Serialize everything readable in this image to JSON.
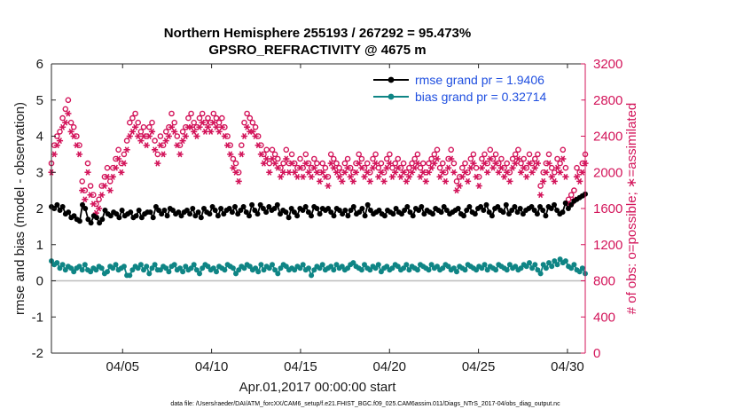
{
  "chart_data": {
    "type": "line",
    "title_line1": "Northern Hemisphere 255193 / 267292 = 95.473%",
    "title_line2": "GPSRO_REFRACTIVITY @ 4675 m",
    "xlabel": "Apr.01,2017 00:00:00 start",
    "ylabel_left": "rmse and bias (model - observation)",
    "ylabel_right": "# of obs: o=possible; ∗=assimilated",
    "footnote": "data file: /Users/raeder/DAI/ATM_forcXX/CAM6_setup/f.e21.FHIST_BGC.f09_025.CAM6assim.011/Diags_NTrS_2017-04/obs_diag_output.nc",
    "x_range_days": [
      1,
      31
    ],
    "x_ticks": [
      {
        "day": 5,
        "label": "04/05"
      },
      {
        "day": 10,
        "label": "04/10"
      },
      {
        "day": 15,
        "label": "04/15"
      },
      {
        "day": 20,
        "label": "04/20"
      },
      {
        "day": 25,
        "label": "04/25"
      },
      {
        "day": 30,
        "label": "04/30"
      }
    ],
    "ylim_left": [
      -2,
      6
    ],
    "left_ticks": [
      "-2",
      "-1",
      "0",
      "1",
      "2",
      "3",
      "4",
      "5",
      "6"
    ],
    "ylim_right": [
      0,
      3200
    ],
    "right_ticks": [
      "0",
      "400",
      "800",
      "1200",
      "1600",
      "2000",
      "2400",
      "2800",
      "3200"
    ],
    "grid": false,
    "zero_line": true,
    "legend_position": "top-right",
    "series": [
      {
        "name": "rmse grand pr = 1.9406",
        "axis": "left",
        "color": "#000000",
        "marker": "circle",
        "text_color": "#1f4fe0",
        "values": [
          2.05,
          2.0,
          2.1,
          1.95,
          2.05,
          1.85,
          1.9,
          1.75,
          1.8,
          1.7,
          1.65,
          2.1,
          2.0,
          1.7,
          1.6,
          1.8,
          1.75,
          1.6,
          1.7,
          1.95,
          1.85,
          1.8,
          1.9,
          1.85,
          1.75,
          1.95,
          1.8,
          1.85,
          1.9,
          1.75,
          1.8,
          1.95,
          1.75,
          1.85,
          1.9,
          1.9,
          1.75,
          2.05,
          1.95,
          1.85,
          1.95,
          1.8,
          2.0,
          1.95,
          1.85,
          1.9,
          1.8,
          1.9,
          1.95,
          1.85,
          2.0,
          1.8,
          1.9,
          1.75,
          2.0,
          1.9,
          1.85,
          2.05,
          1.95,
          1.8,
          2.0,
          1.85,
          1.95,
          2.0,
          1.9,
          2.05,
          1.85,
          1.95,
          2.05,
          1.9,
          1.8,
          2.1,
          1.95,
          1.85,
          2.1,
          2.0,
          1.9,
          2.05,
          1.95,
          2.0,
          2.1,
          1.85,
          1.95,
          1.9,
          1.75,
          2.0,
          1.9,
          1.8,
          2.0,
          1.95,
          2.05,
          1.9,
          1.8,
          2.05,
          2.0,
          1.85,
          2.0,
          1.95,
          2.0,
          1.9,
          1.8,
          2.0,
          1.95,
          1.85,
          1.95,
          1.8,
          1.95,
          2.05,
          1.85,
          1.9,
          2.0,
          1.8,
          2.1,
          1.95,
          1.85,
          1.9,
          1.95,
          1.85,
          1.8,
          1.95,
          1.9,
          1.85,
          2.0,
          1.9,
          1.85,
          1.95,
          2.05,
          1.9,
          1.8,
          2.0,
          1.95,
          2.05,
          1.85,
          1.95,
          1.9,
          1.85,
          2.0,
          1.95,
          1.9,
          2.05,
          1.95,
          1.85,
          1.9,
          1.95,
          2.0,
          1.85,
          1.8,
          1.95,
          2.05,
          1.9,
          1.85,
          2.0,
          2.05,
          1.95,
          2.1,
          1.9,
          1.8,
          2.0,
          2.05,
          1.95,
          1.9,
          2.1,
          1.85,
          1.95,
          2.05,
          1.9,
          2.0,
          1.85,
          1.95,
          2.0,
          2.05,
          1.95,
          1.85,
          2.05,
          1.95,
          1.8,
          2.05,
          2.0,
          2.1,
          1.95,
          1.85,
          1.9,
          2.15,
          2.0,
          2.1,
          2.2,
          2.25,
          2.3,
          2.35,
          2.4
        ]
      },
      {
        "name": "bias grand pr = 0.32714",
        "axis": "left",
        "color": "#0f8585",
        "marker": "circle",
        "text_color": "#1f4fe0",
        "values": [
          0.55,
          0.45,
          0.5,
          0.35,
          0.45,
          0.3,
          0.4,
          0.35,
          0.25,
          0.35,
          0.4,
          0.3,
          0.45,
          0.3,
          0.25,
          0.35,
          0.3,
          0.4,
          0.35,
          0.2,
          0.25,
          0.4,
          0.35,
          0.45,
          0.3,
          0.35,
          0.4,
          0.15,
          0.15,
          0.3,
          0.4,
          0.35,
          0.45,
          0.3,
          0.4,
          0.2,
          0.35,
          0.45,
          0.3,
          0.3,
          0.4,
          0.35,
          0.25,
          0.4,
          0.45,
          0.3,
          0.35,
          0.25,
          0.4,
          0.3,
          0.35,
          0.45,
          0.3,
          0.2,
          0.35,
          0.45,
          0.4,
          0.3,
          0.35,
          0.25,
          0.4,
          0.35,
          0.3,
          0.45,
          0.4,
          0.35,
          0.2,
          0.3,
          0.4,
          0.35,
          0.45,
          0.4,
          0.3,
          0.35,
          0.25,
          0.45,
          0.3,
          0.4,
          0.35,
          0.45,
          0.3,
          0.2,
          0.35,
          0.45,
          0.4,
          0.3,
          0.35,
          0.3,
          0.4,
          0.35,
          0.45,
          0.3,
          0.35,
          0.15,
          0.3,
          0.4,
          0.35,
          0.45,
          0.3,
          0.35,
          0.4,
          0.3,
          0.45,
          0.35,
          0.4,
          0.3,
          0.35,
          0.45,
          0.5,
          0.4,
          0.35,
          0.3,
          0.45,
          0.35,
          0.3,
          0.4,
          0.35,
          0.45,
          0.25,
          0.35,
          0.4,
          0.3,
          0.35,
          0.45,
          0.4,
          0.3,
          0.35,
          0.45,
          0.3,
          0.4,
          0.35,
          0.3,
          0.45,
          0.4,
          0.35,
          0.3,
          0.45,
          0.35,
          0.4,
          0.3,
          0.35,
          0.45,
          0.4,
          0.3,
          0.35,
          0.25,
          0.4,
          0.35,
          0.3,
          0.45,
          0.4,
          0.35,
          0.3,
          0.4,
          0.35,
          0.45,
          0.3,
          0.4,
          0.35,
          0.3,
          0.45,
          0.4,
          0.35,
          0.3,
          0.45,
          0.35,
          0.4,
          0.3,
          0.35,
          0.45,
          0.4,
          0.5,
          0.35,
          0.45,
          0.3,
          0.2,
          0.45,
          0.35,
          0.5,
          0.4,
          0.55,
          0.45,
          0.6,
          0.5,
          0.55,
          0.4,
          0.35,
          0.45,
          0.3,
          0.25,
          0.35,
          0.2
        ]
      },
      {
        "name": "possible",
        "axis": "right",
        "color": "#d3145a",
        "marker": "o",
        "values": [
          2100,
          2300,
          2400,
          2450,
          2600,
          2700,
          2800,
          2550,
          2500,
          2400,
          2300,
          1900,
          1800,
          2100,
          1850,
          1750,
          1650,
          1700,
          1850,
          1950,
          2050,
          1900,
          2050,
          2150,
          2250,
          2100,
          2200,
          2350,
          2550,
          2600,
          2650,
          2550,
          2450,
          2500,
          2400,
          2500,
          2550,
          2350,
          2200,
          2400,
          2300,
          2450,
          2500,
          2650,
          2550,
          2400,
          2300,
          2450,
          2500,
          2600,
          2650,
          2550,
          2500,
          2600,
          2650,
          2550,
          2600,
          2550,
          2650,
          2600,
          2550,
          2600,
          2500,
          2400,
          2300,
          2150,
          2100,
          2000,
          2300,
          2550,
          2650,
          2600,
          2550,
          2500,
          2400,
          2300,
          2200,
          2250,
          2100,
          2250,
          2200,
          2150,
          2050,
          2100,
          2250,
          2100,
          2200,
          2100,
          2050,
          2150,
          2050,
          2200,
          2100,
          2050,
          2150,
          2100,
          2000,
          2100,
          2050,
          1950,
          2200,
          2150,
          2100,
          2050,
          2000,
          2100,
          2150,
          2050,
          2000,
          2100,
          2200,
          2150,
          2050,
          2100,
          2000,
          2150,
          2200,
          2050,
          2100,
          2000,
          2150,
          2200,
          2050,
          2100,
          2150,
          2050,
          2100,
          2000,
          2050,
          2100,
          2150,
          2200,
          2050,
          2100,
          2000,
          2100,
          2150,
          2200,
          2250,
          2050,
          2100,
          2000,
          2150,
          2250,
          2100,
          1900,
          1950,
          2050,
          2100,
          2000,
          2150,
          2200,
          2050,
          1950,
          2150,
          2200,
          2100,
          2250,
          2150,
          2200,
          2100,
          2150,
          2050,
          2100,
          2000,
          2150,
          2200,
          2250,
          2100,
          2150,
          2050,
          2200,
          2100,
          2150,
          2200,
          1850,
          2000,
          2100,
          2200,
          2050,
          2000,
          2150,
          2100,
          2250,
          2050,
          1700,
          1750,
          1800,
          2050,
          2000,
          2100,
          2200
        ]
      },
      {
        "name": "assimilated",
        "axis": "right",
        "color": "#d3145a",
        "marker": "asterisk",
        "values": [
          2000,
          2200,
          2300,
          2350,
          2500,
          2550,
          2650,
          2450,
          2400,
          2300,
          2200,
          1800,
          1700,
          2000,
          1750,
          1650,
          1550,
          1600,
          1750,
          1850,
          1950,
          1800,
          1950,
          2050,
          2150,
          2000,
          2100,
          2250,
          2400,
          2450,
          2500,
          2400,
          2350,
          2400,
          2300,
          2400,
          2450,
          2250,
          2100,
          2300,
          2200,
          2350,
          2400,
          2500,
          2450,
          2300,
          2200,
          2350,
          2400,
          2500,
          2500,
          2450,
          2400,
          2500,
          2550,
          2450,
          2500,
          2450,
          2550,
          2500,
          2450,
          2500,
          2400,
          2300,
          2200,
          2050,
          2000,
          1900,
          2200,
          2400,
          2500,
          2450,
          2450,
          2400,
          2300,
          2200,
          2100,
          2150,
          2000,
          2150,
          2100,
          2050,
          1950,
          2000,
          2150,
          2000,
          2100,
          2000,
          1950,
          2050,
          1950,
          2100,
          2000,
          1950,
          2050,
          2000,
          1900,
          2000,
          1950,
          1850,
          2100,
          2050,
          2000,
          1950,
          1900,
          2000,
          2050,
          1950,
          1900,
          2000,
          2100,
          2050,
          1950,
          2000,
          1900,
          2050,
          2100,
          1950,
          2000,
          1900,
          2050,
          2100,
          1950,
          2000,
          2050,
          1950,
          2000,
          1900,
          1950,
          2000,
          2050,
          2100,
          1950,
          2000,
          1900,
          2000,
          2050,
          2100,
          2150,
          1950,
          2000,
          1900,
          2050,
          2150,
          2000,
          1800,
          1850,
          1950,
          2000,
          1900,
          2050,
          2100,
          1950,
          1850,
          2050,
          2100,
          2000,
          2150,
          2050,
          2100,
          2000,
          2050,
          1950,
          2000,
          1900,
          2050,
          2100,
          2150,
          2000,
          2050,
          1950,
          2100,
          2000,
          2050,
          2100,
          1750,
          1900,
          2000,
          2100,
          1950,
          1900,
          2050,
          2000,
          2150,
          1950,
          1650,
          1650,
          1700,
          1950,
          1900,
          2000,
          2100
        ]
      }
    ]
  }
}
